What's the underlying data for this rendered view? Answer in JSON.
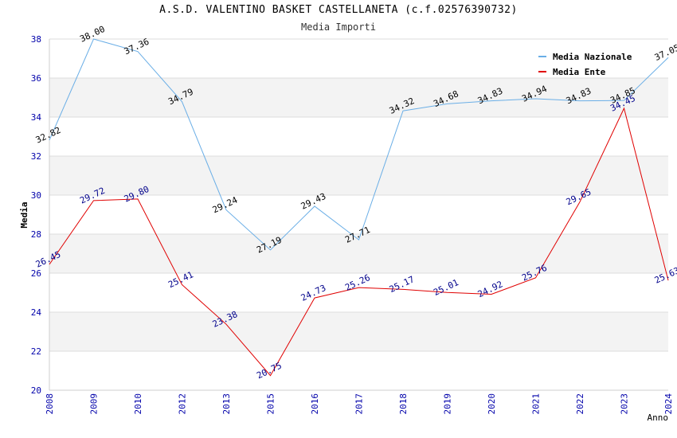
{
  "chart_data": {
    "type": "line",
    "title": "A.S.D. VALENTINO BASKET CASTELLANETA (c.f.02576390732)",
    "subtitle": "Media Importi",
    "xlabel": "Anno",
    "ylabel": "Media",
    "ylim": [
      20,
      38
    ],
    "yticks": [
      "20",
      "22",
      "24",
      "26",
      "28",
      "30",
      "32",
      "34",
      "36",
      "38"
    ],
    "categories": [
      "2008",
      "2009",
      "2010",
      "2012",
      "2013",
      "2015",
      "2016",
      "2017",
      "2018",
      "2019",
      "2020",
      "2021",
      "2022",
      "2023",
      "2024"
    ],
    "series": [
      {
        "name": "Media Nazionale",
        "color": "#6aaee6",
        "values": [
          32.82,
          38.0,
          37.36,
          34.79,
          29.24,
          27.19,
          29.43,
          27.71,
          34.32,
          34.68,
          34.83,
          34.94,
          34.83,
          34.85,
          37.05
        ],
        "labels": [
          "32.82",
          "38.00",
          "37.36",
          "34.79",
          "29.24",
          "27.19",
          "29.43",
          "27.71",
          "34.32",
          "34.68",
          "34.83",
          "34.94",
          "34.83",
          "34.85",
          "37.05"
        ]
      },
      {
        "name": "Media Ente",
        "color": "#e00000",
        "values": [
          26.45,
          29.72,
          29.8,
          25.41,
          23.38,
          20.75,
          24.73,
          25.26,
          25.17,
          25.01,
          24.92,
          25.76,
          29.65,
          34.45,
          25.63
        ],
        "labels": [
          "26.45",
          "29.72",
          "29.80",
          "25.41",
          "23.38",
          "20.75",
          "24.73",
          "25.26",
          "25.17",
          "25.01",
          "24.92",
          "25.76",
          "29.65",
          "34.45",
          "25.63"
        ]
      }
    ],
    "legend_position": "top-right",
    "grid": true
  }
}
